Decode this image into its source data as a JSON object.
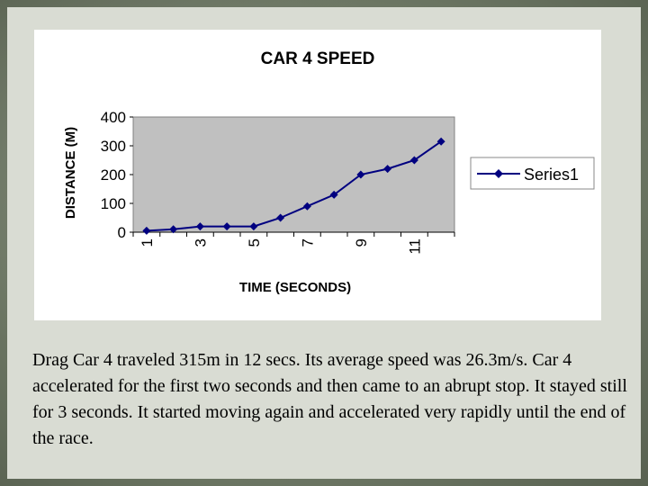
{
  "slide": {
    "caption": "Drag Car 4 traveled 315m in 12 secs.  Its average speed was 26.3m/s.  Car 4 accelerated for the first two seconds and then came to an abrupt stop.  It stayed still for 3 seconds.  It started moving again and accelerated very rapidly until the end of the race."
  },
  "chart_data": {
    "type": "line",
    "title": "CAR 4 SPEED",
    "xlabel": "TIME (SECONDS)",
    "ylabel": "DISTANCE (M)",
    "x": [
      1,
      2,
      3,
      4,
      5,
      6,
      7,
      8,
      9,
      10,
      11,
      12
    ],
    "x_tick_labels": [
      "1",
      "3",
      "5",
      "7",
      "9",
      "11"
    ],
    "y_tick_labels": [
      "0",
      "100",
      "200",
      "300",
      "400"
    ],
    "ylim": [
      0,
      400
    ],
    "grid": "off",
    "legend_position": "right",
    "plot_background": "#c0c0c0",
    "series": [
      {
        "name": "Series1",
        "color": "#000080",
        "marker": "diamond",
        "values": [
          5,
          10,
          20,
          20,
          20,
          50,
          90,
          130,
          200,
          220,
          250,
          315
        ]
      }
    ]
  }
}
